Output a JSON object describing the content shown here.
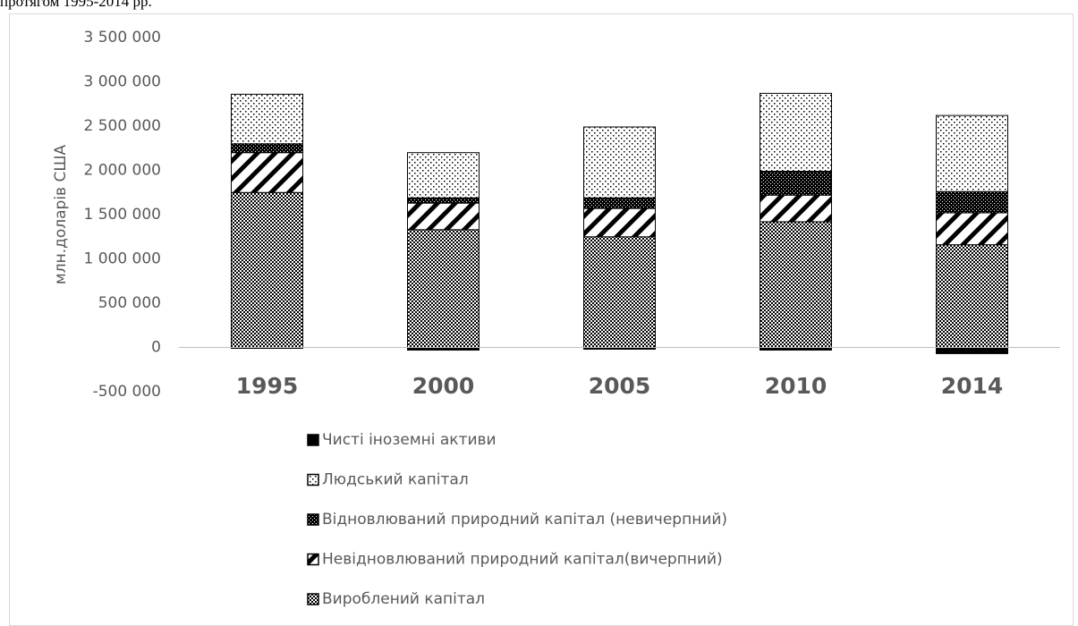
{
  "chart_data": {
    "type": "stacked_bar",
    "title": "протягом 1995-2014 рр.",
    "y_label": "млн.доларів США",
    "categories": [
      "1995",
      "2000",
      "2005",
      "2010",
      "2014"
    ],
    "series": [
      {
        "name": "Вироблений капітал",
        "color": "#000000",
        "pattern": "checker",
        "values": [
          1750000,
          1330000,
          1250000,
          1420000,
          1160000
        ]
      },
      {
        "name": "Невідновлюваний природний капітал(вичерпний)",
        "color": "#000000",
        "pattern": "diagonal",
        "values": [
          450000,
          300000,
          320000,
          300000,
          360000
        ]
      },
      {
        "name": "Відновлюваний природний капітал (невичерпний)",
        "color": "#000000",
        "pattern": "dense-dots",
        "values": [
          100000,
          60000,
          120000,
          270000,
          240000
        ]
      },
      {
        "name": "Людський капітал",
        "color": "#000000",
        "pattern": "sparse-dots",
        "values": [
          560000,
          510000,
          800000,
          880000,
          860000
        ]
      },
      {
        "name": "Чисті іноземні активи",
        "color": "#000000",
        "pattern": "solid",
        "values": [
          -10000,
          -30000,
          -20000,
          -30000,
          -70000
        ]
      }
    ],
    "ylim": [
      -500000,
      3500000
    ],
    "yticks": [
      {
        "value": -500000,
        "label": "-500 000"
      },
      0,
      {
        "value": 500000,
        "label": "500 000"
      },
      {
        "value": 1000000,
        "label": "1 000 000"
      },
      {
        "value": 1500000,
        "label": "1 500 000"
      },
      {
        "value": 2000000,
        "label": "2 000 000"
      },
      {
        "value": 2500000,
        "label": "2 500 000"
      },
      {
        "value": 3000000,
        "label": "3 000 000"
      },
      {
        "value": 3500000,
        "label": "3 500 000"
      }
    ],
    "grid": false,
    "legend": "bottom"
  }
}
